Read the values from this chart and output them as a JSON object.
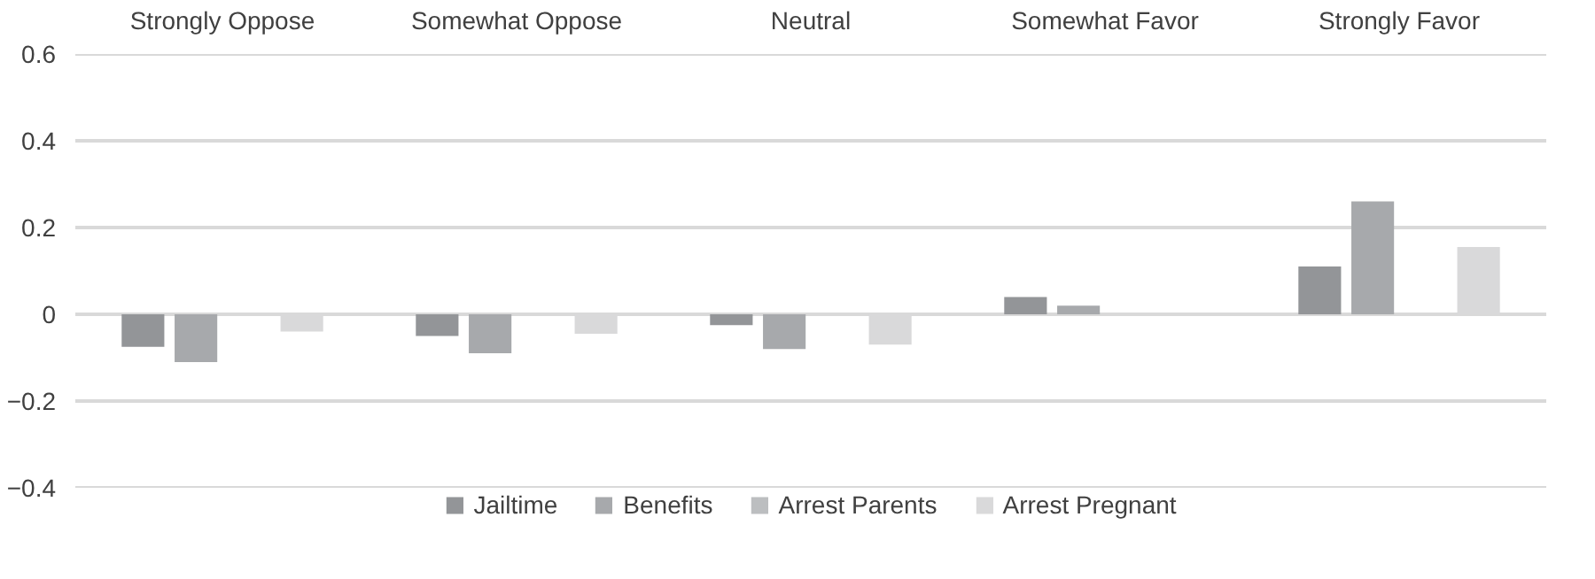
{
  "chart_data": {
    "type": "bar",
    "categories": [
      "Strongly Oppose",
      "Somewhat Oppose",
      "Neutral",
      "Somewhat Favor",
      "Strongly Favor"
    ],
    "series": [
      {
        "name": "Jailtime",
        "color": "#939598",
        "values": [
          -0.075,
          -0.05,
          -0.025,
          0.04,
          0.11
        ]
      },
      {
        "name": "Benefits",
        "color": "#a7a9ac",
        "values": [
          -0.11,
          -0.09,
          -0.08,
          0.02,
          0.26
        ]
      },
      {
        "name": "Arrest Parents",
        "color": "#bcbec0",
        "values": [
          null,
          null,
          null,
          null,
          null
        ]
      },
      {
        "name": "Arrest Pregnant",
        "color": "#d9d9da",
        "values": [
          -0.04,
          -0.045,
          -0.07,
          null,
          0.155
        ]
      }
    ],
    "ylim": [
      -0.4,
      0.6
    ],
    "yticks": [
      {
        "value": -0.4,
        "label": "−0.4"
      },
      {
        "value": -0.2,
        "label": "−0.2"
      },
      0,
      0.2,
      0.4,
      0.6
    ],
    "grid": "y",
    "legend": "bottom"
  }
}
